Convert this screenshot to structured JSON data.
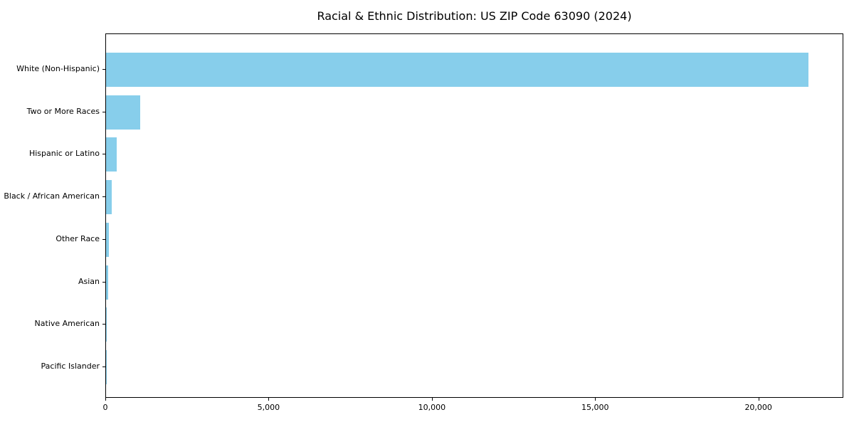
{
  "chart_data": {
    "type": "bar",
    "orientation": "horizontal",
    "title": "Racial & Ethnic Distribution: US ZIP Code 63090 (2024)",
    "categories": [
      "White (Non-Hispanic)",
      "Two or More Races",
      "Hispanic or Latino",
      "Black / African American",
      "Other Race",
      "Asian",
      "Native American",
      "Pacific Islander"
    ],
    "values": [
      21500,
      1050,
      330,
      170,
      85,
      55,
      15,
      3
    ],
    "xlabel": "",
    "ylabel": "",
    "xlim": [
      0,
      22600
    ],
    "x_ticks": [
      0,
      5000,
      10000,
      15000,
      20000
    ],
    "x_tick_labels": [
      "0",
      "5,000",
      "10,000",
      "15,000",
      "20,000"
    ],
    "bar_color": "#87CEEB",
    "axis_color": "#000000",
    "background_color": "#ffffff",
    "grid": false,
    "legend": "none"
  }
}
